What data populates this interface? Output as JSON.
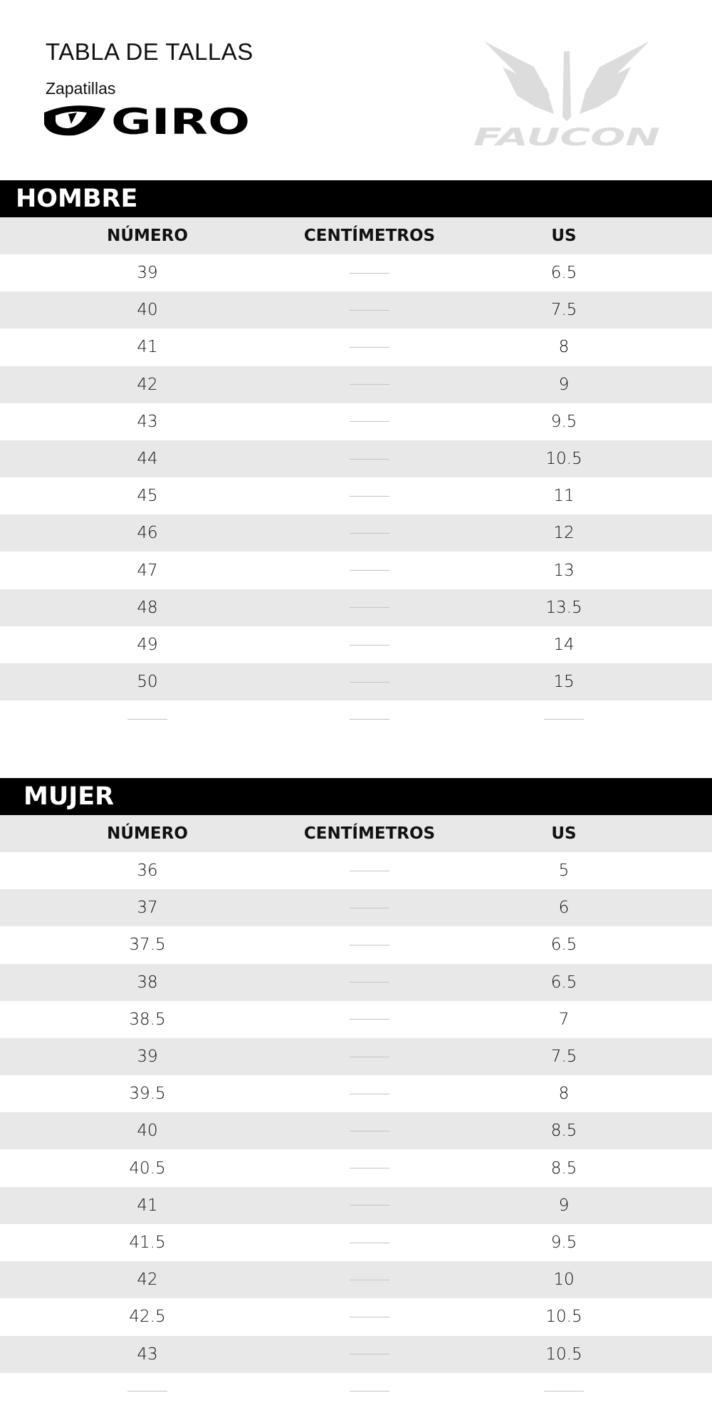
{
  "header": {
    "title": "TABLA DE TALLAS",
    "subtitle": "Zapatillas",
    "brand_logo": "GIRO",
    "store_logo": "FAUCON"
  },
  "columns": [
    "NÚMERO",
    "CENTÍMETROS",
    "US"
  ],
  "colors": {
    "bar": "#000000",
    "stripe": "#e8e8e8",
    "logo_gray": "#dcdcdc"
  },
  "sections": [
    {
      "title": "HOMBRE",
      "rows": [
        [
          "39",
          "",
          "6.5"
        ],
        [
          "40",
          "",
          "7.5"
        ],
        [
          "41",
          "",
          "8"
        ],
        [
          "42",
          "",
          "9"
        ],
        [
          "43",
          "",
          "9.5"
        ],
        [
          "44",
          "",
          "10.5"
        ],
        [
          "45",
          "",
          "11"
        ],
        [
          "46",
          "",
          "12"
        ],
        [
          "47",
          "",
          "13"
        ],
        [
          "48",
          "",
          "13.5"
        ],
        [
          "49",
          "",
          "14"
        ],
        [
          "50",
          "",
          "15"
        ],
        [
          "",
          "",
          ""
        ]
      ]
    },
    {
      "title": "MUJER",
      "rows": [
        [
          "36",
          "",
          "5"
        ],
        [
          "37",
          "",
          "6"
        ],
        [
          "37.5",
          "",
          "6.5"
        ],
        [
          "38",
          "",
          "6.5"
        ],
        [
          "38.5",
          "",
          "7"
        ],
        [
          "39",
          "",
          "7.5"
        ],
        [
          "39.5",
          "",
          "8"
        ],
        [
          "40",
          "",
          "8.5"
        ],
        [
          "40.5",
          "",
          "8.5"
        ],
        [
          "41",
          "",
          "9"
        ],
        [
          "41.5",
          "",
          "9.5"
        ],
        [
          "42",
          "",
          "10"
        ],
        [
          "42.5",
          "",
          "10.5"
        ],
        [
          "43",
          "",
          "10.5"
        ],
        [
          "",
          "",
          ""
        ]
      ]
    }
  ]
}
